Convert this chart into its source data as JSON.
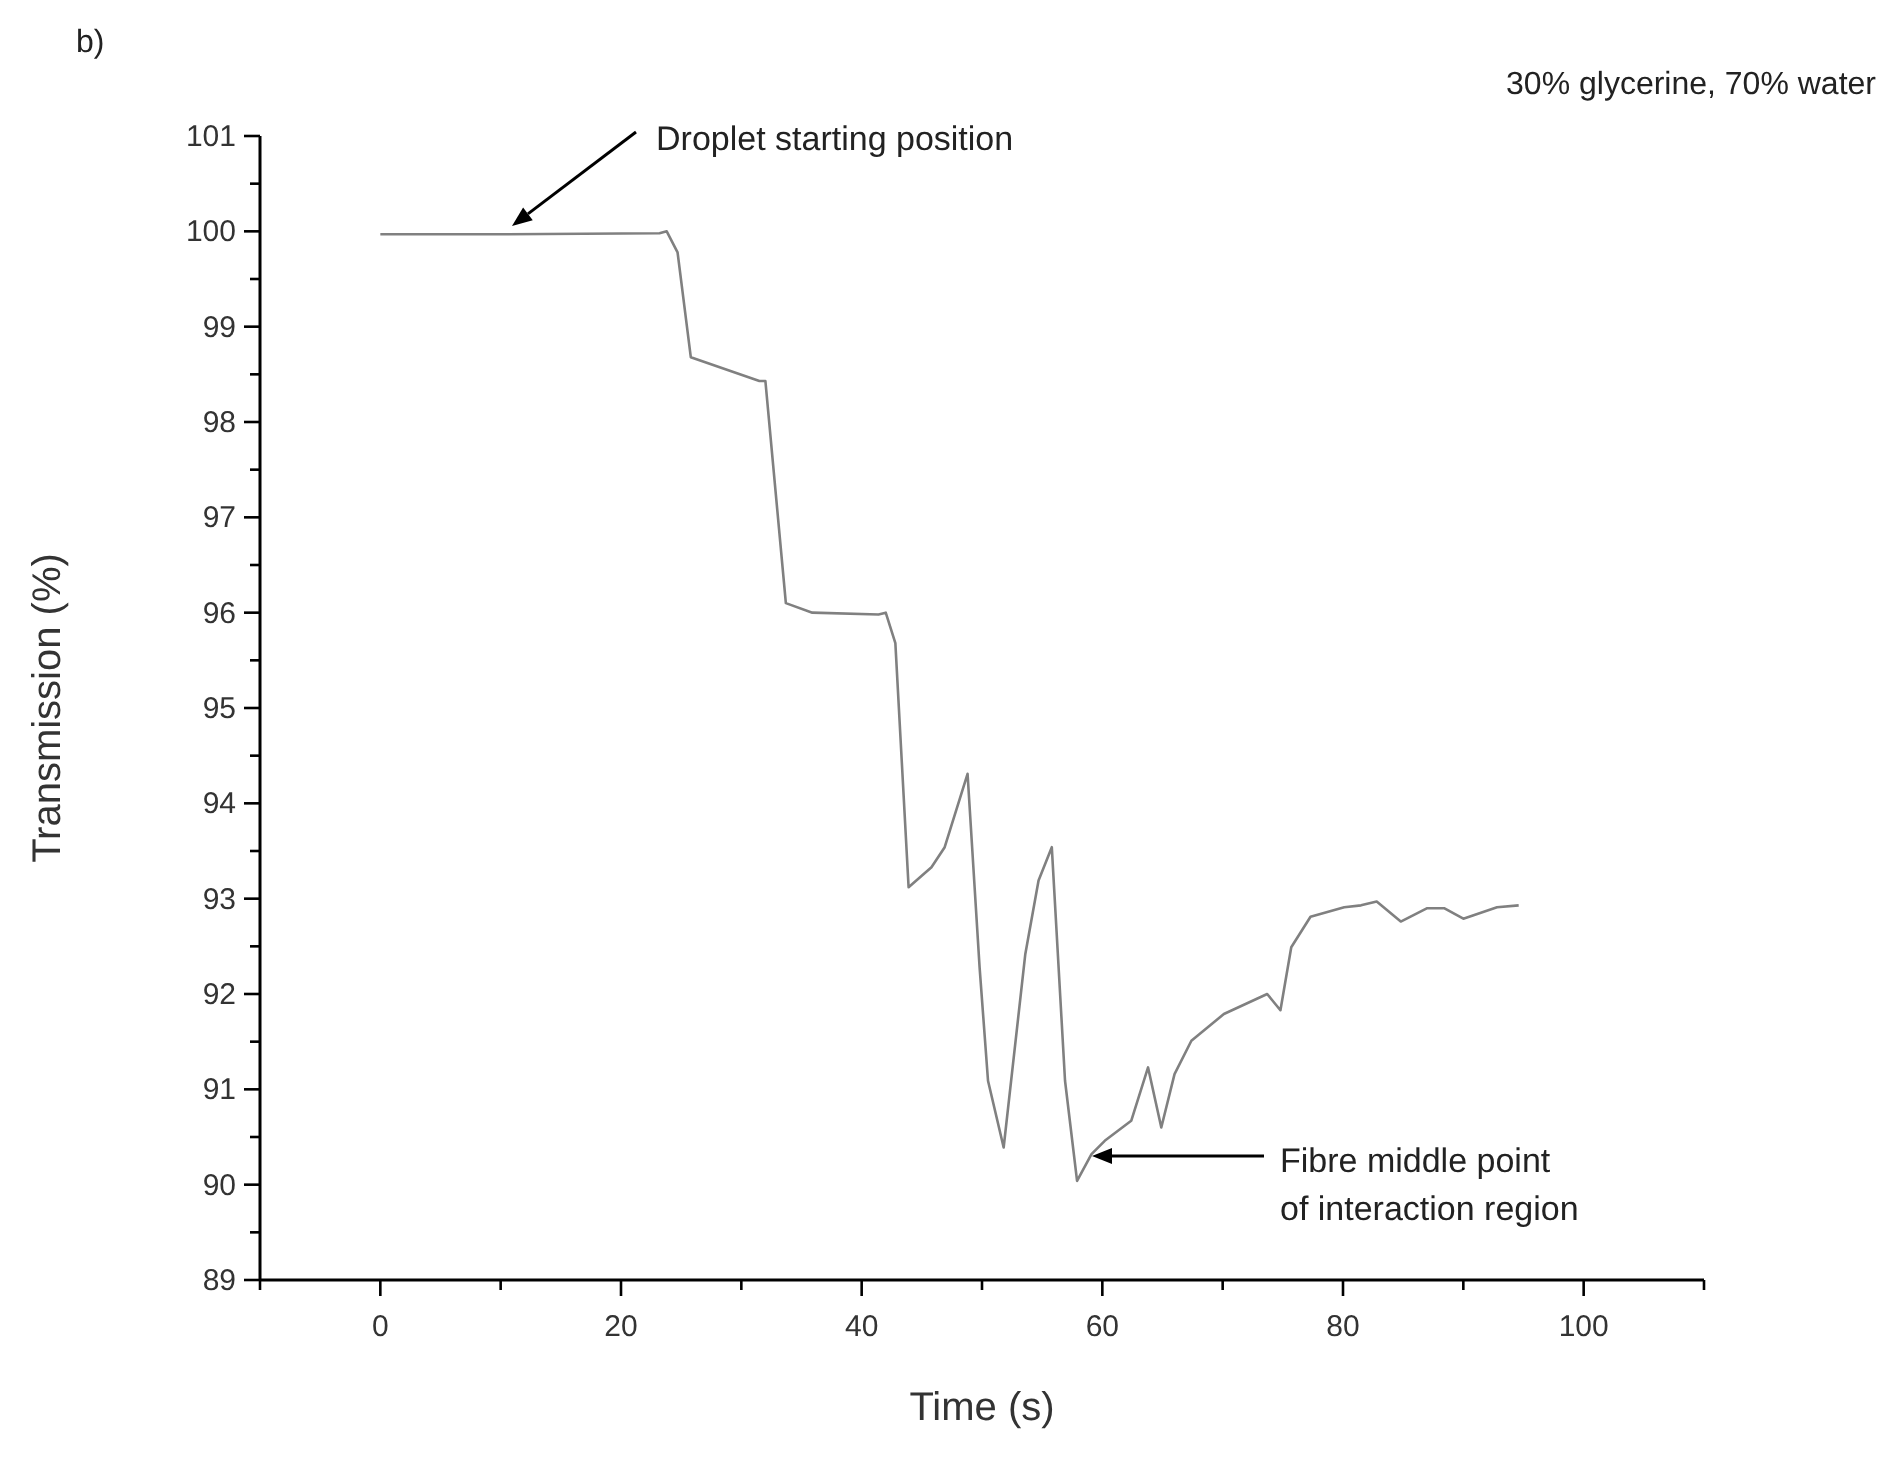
{
  "chart_data": {
    "type": "line",
    "xlabel": "Time (s)",
    "ylabel": "Transmission (%)",
    "xlim": [
      -10,
      110
    ],
    "ylim": [
      89,
      101
    ],
    "xticks": [
      {
        "value": -10,
        "label": null
      },
      0,
      {
        "value": 10,
        "label": null
      },
      20,
      {
        "value": 30,
        "label": null
      },
      40,
      {
        "value": 50,
        "label": null
      },
      60,
      {
        "value": 70,
        "label": null
      },
      80,
      {
        "value": 90,
        "label": null
      },
      100,
      {
        "value": 110,
        "label": null
      }
    ],
    "yticks": [
      89,
      {
        "value": 89.5,
        "label": null
      },
      90,
      {
        "value": 90.5,
        "label": null
      },
      91,
      {
        "value": 91.5,
        "label": null
      },
      92,
      {
        "value": 92.5,
        "label": null
      },
      93,
      {
        "value": 93.5,
        "label": null
      },
      94,
      {
        "value": 94.5,
        "label": null
      },
      95,
      {
        "value": 95.5,
        "label": null
      },
      96,
      {
        "value": 96.5,
        "label": null
      },
      97,
      {
        "value": 97.5,
        "label": null
      },
      98,
      {
        "value": 98.5,
        "label": null
      },
      99,
      {
        "value": 99.5,
        "label": null
      },
      100,
      {
        "value": 100.5,
        "label": null
      },
      101
    ],
    "grid": false,
    "marker": "none",
    "line_style": "solid",
    "series": [
      {
        "color": "#808080",
        "x": [
          0,
          10.6,
          23.2,
          23.8,
          24.7,
          25.8,
          31.5,
          32.0,
          33.7,
          35.9,
          41.4,
          42.0,
          42.8,
          43.9,
          45.8,
          46.9,
          48.8,
          49.8,
          50.5,
          51.8,
          53.6,
          54.7,
          55.8,
          56.9,
          57.9,
          59.1,
          60.2,
          62.4,
          63.8,
          64.9,
          66.0,
          67.4,
          70.1,
          73.7,
          74.8,
          75.7,
          77.3,
          80.1,
          81.5,
          82.8,
          84.8,
          87.0,
          88.4,
          90.0,
          92.8,
          94.6
        ],
        "values": [
          99.97,
          99.97,
          99.98,
          100.0,
          99.78,
          98.68,
          98.43,
          98.43,
          96.1,
          96.0,
          95.98,
          96.0,
          95.68,
          93.12,
          93.33,
          93.54,
          94.31,
          92.28,
          91.09,
          90.39,
          92.42,
          93.19,
          93.54,
          91.09,
          90.04,
          90.32,
          90.46,
          90.67,
          91.23,
          90.6,
          91.16,
          91.51,
          91.79,
          92.0,
          91.83,
          92.49,
          92.81,
          92.91,
          92.93,
          92.97,
          92.76,
          92.9,
          92.9,
          92.79,
          92.91,
          92.93
        ]
      }
    ],
    "annotations": [
      "b)",
      "30% glycerine, 70% water",
      "Droplet starting position",
      "Fibre middle point\nof interaction region"
    ]
  }
}
